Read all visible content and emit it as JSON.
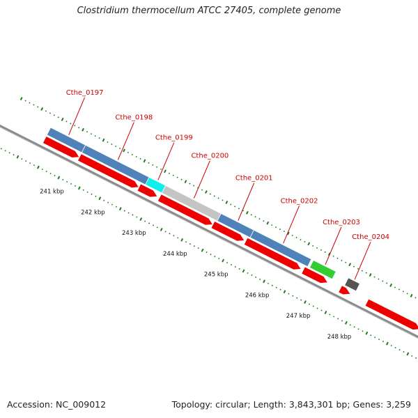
{
  "title": "Clostridium thermocellum ATCC 27405, complete genome",
  "footer": {
    "accession": "Accession: NC_009012",
    "summary": "Topology: circular; Length: 3,843,301 bp; Genes: 3,259"
  },
  "colors": {
    "cds_red": "#ee0000",
    "gene_blue": "#4f82b8",
    "cyan": "#11eeee",
    "grey": "#c4c4c4",
    "green": "#33cc33",
    "dark": "#555555",
    "backbone": "#8c8c8c",
    "tick": "#1e7b1e",
    "label": "#cc0000"
  },
  "genes": [
    {
      "label": "Cthe_0197",
      "start": 240.35,
      "end": 241.2,
      "color": "blue"
    },
    {
      "label": "Cthe_0198",
      "start": 241.2,
      "end": 242.75,
      "color": "blue"
    },
    {
      "label": "Cthe_0199",
      "start": 242.75,
      "end": 243.15,
      "color": "cyan"
    },
    {
      "label": "Cthe_0200",
      "start": 243.15,
      "end": 244.5,
      "color": "grey"
    },
    {
      "label": "Cthe_0201",
      "start": 244.5,
      "end": 245.3,
      "color": "blue"
    },
    {
      "label": "Cthe_0202",
      "start": 245.3,
      "end": 246.7,
      "color": "blue"
    },
    {
      "label": "Cthe_0203",
      "start": 246.75,
      "end": 247.3,
      "color": "green"
    },
    {
      "label": "Cthe_0204",
      "start": 247.6,
      "end": 247.88,
      "color": "dark"
    }
  ],
  "cds": [
    {
      "start": 240.35,
      "end": 241.2
    },
    {
      "start": 241.2,
      "end": 242.65
    },
    {
      "start": 242.65,
      "end": 243.1
    },
    {
      "start": 243.15,
      "end": 244.45
    },
    {
      "start": 244.45,
      "end": 245.22
    },
    {
      "start": 245.25,
      "end": 246.6
    },
    {
      "start": 246.65,
      "end": 247.25
    },
    {
      "start": 247.55,
      "end": 247.8
    },
    {
      "start": 248.2,
      "end": 249.5
    }
  ],
  "kbp_labels": [
    "241 kbp",
    "242 kbp",
    "243 kbp",
    "244 kbp",
    "245 kbp",
    "246 kbp",
    "247 kbp",
    "248 kbp"
  ]
}
